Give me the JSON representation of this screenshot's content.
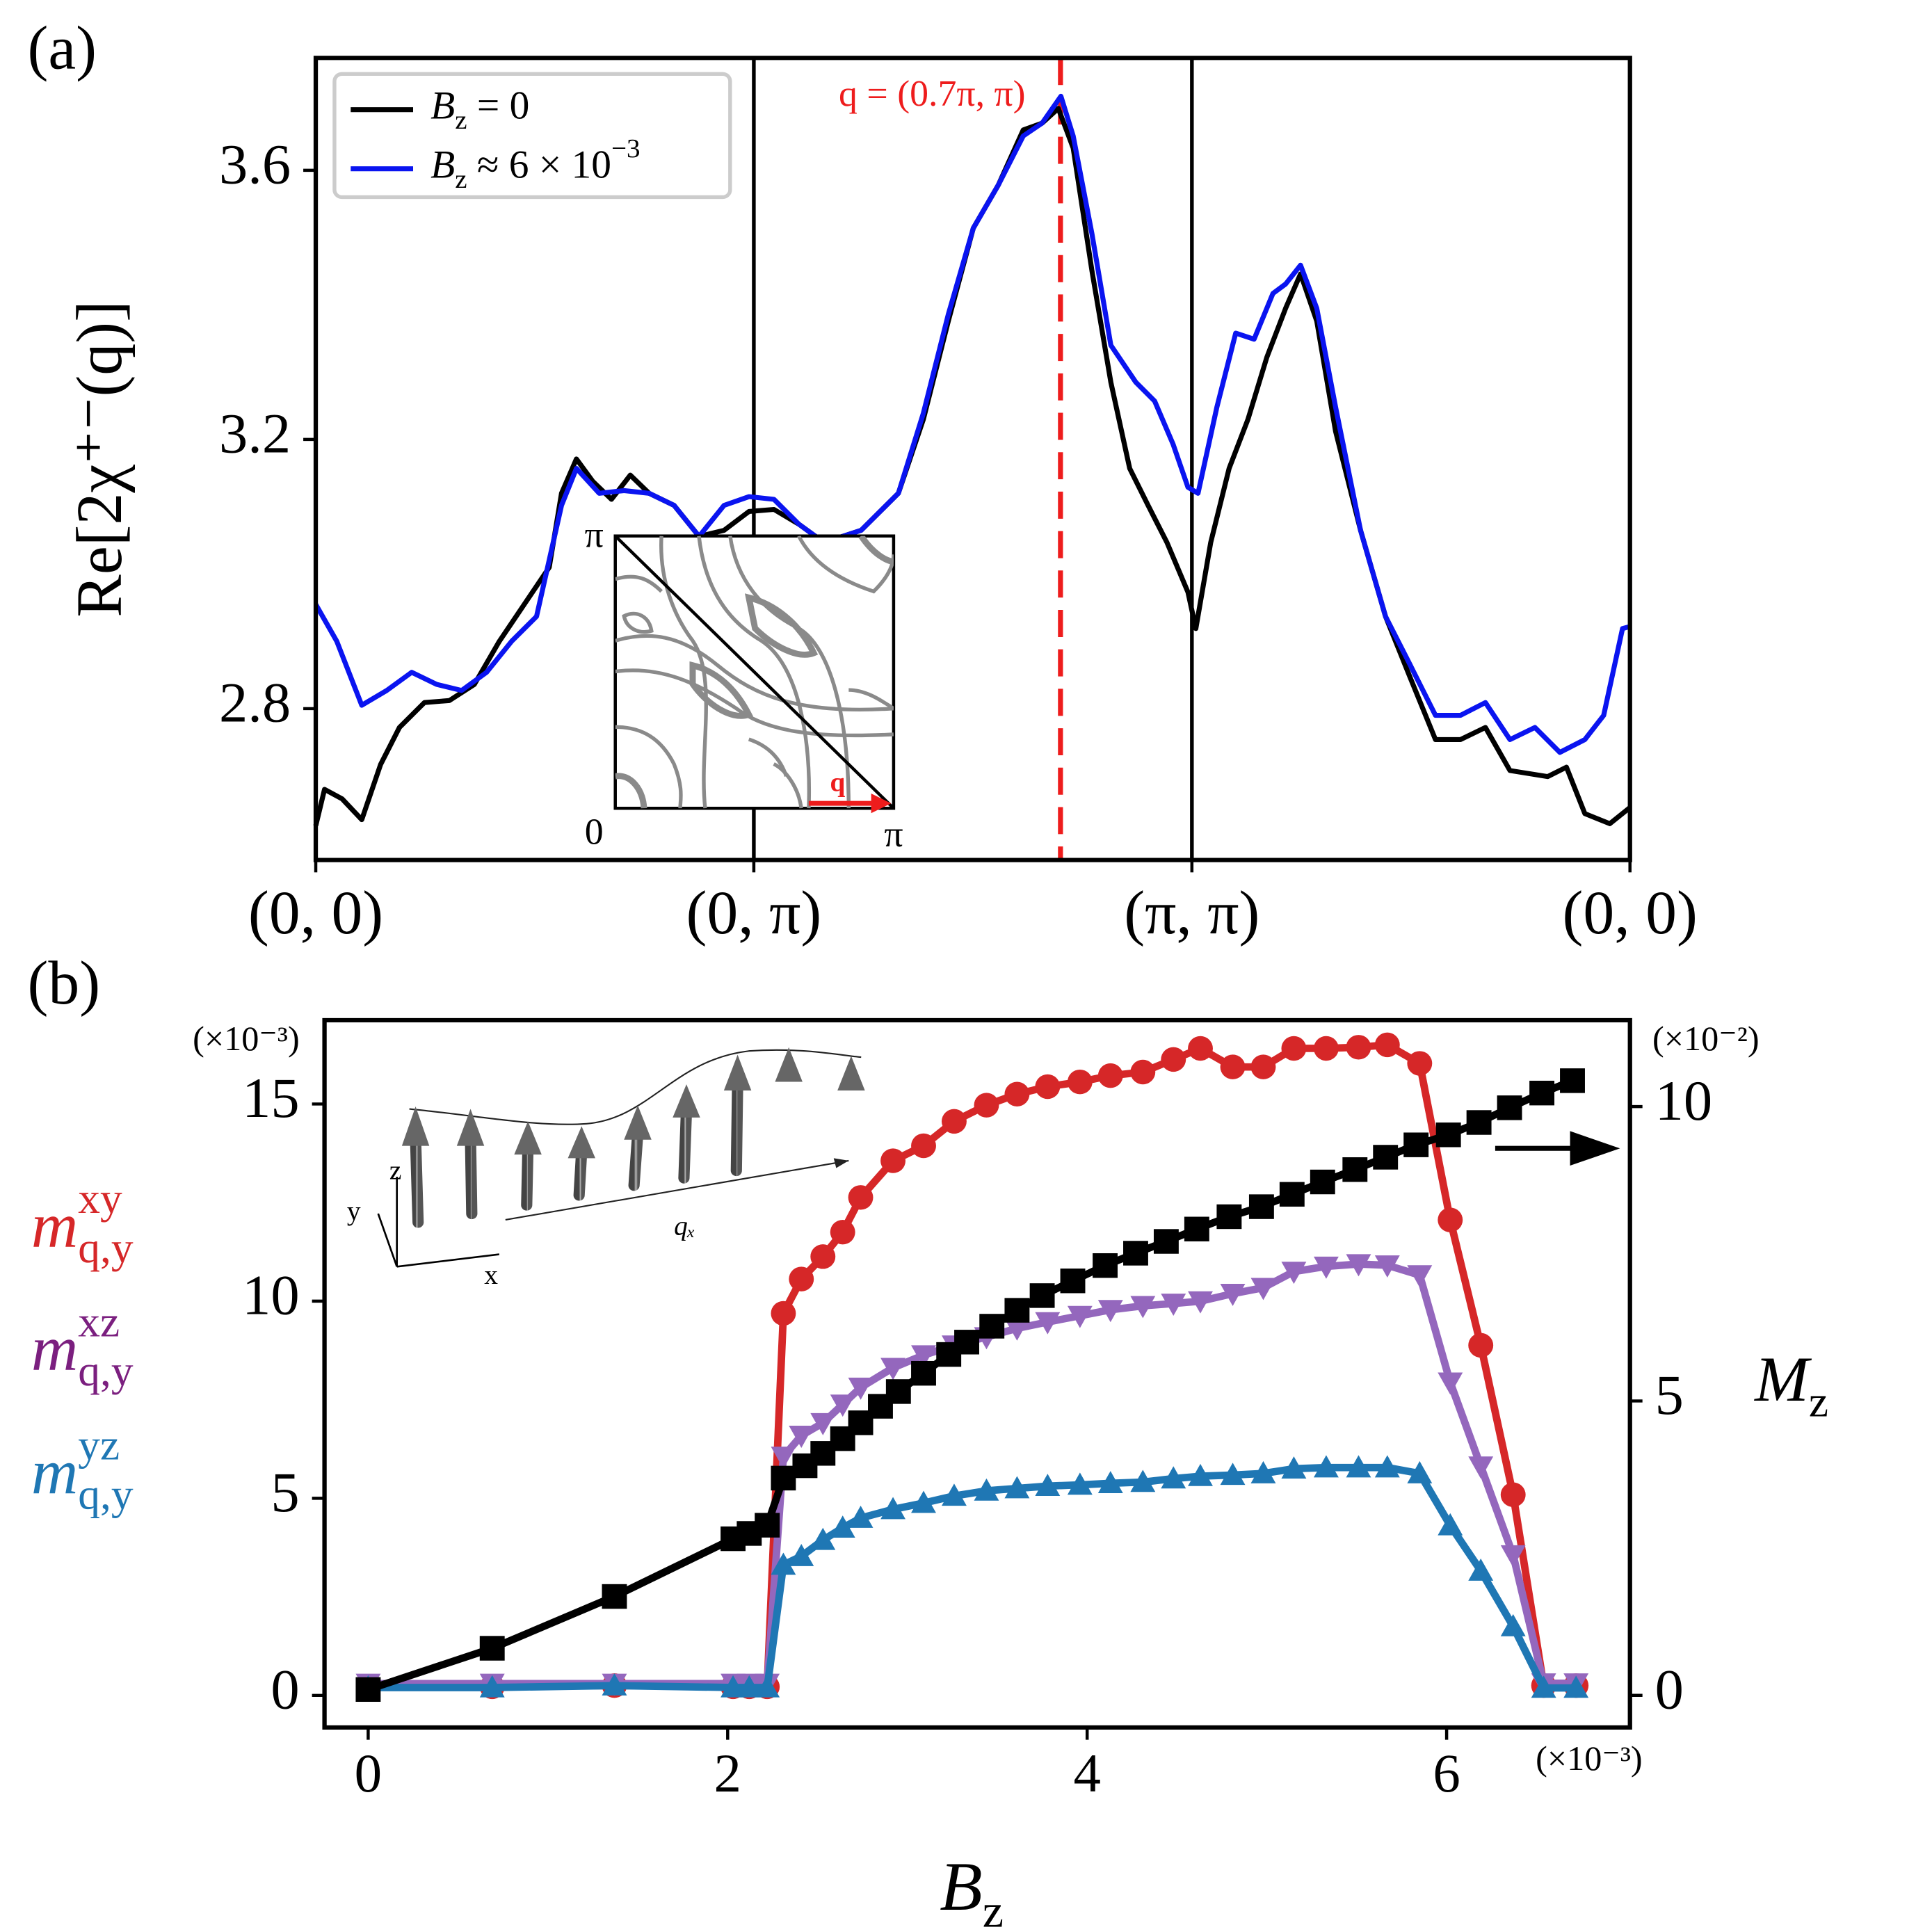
{
  "chart_data": [
    {
      "type": "line",
      "panel_label": "(a)",
      "ylabel": "Re[2χ⁺⁻(q)]",
      "xlim": [
        0,
        3
      ],
      "xticks": [
        {
          "value": 0,
          "label": "(0, 0)"
        },
        {
          "value": 1,
          "label": "(0, π)"
        },
        {
          "value": 2,
          "label": "(π, π)"
        },
        {
          "value": 3,
          "label": "(0, 0)"
        }
      ],
      "ylim": [
        2.575,
        3.767
      ],
      "yticks": [
        2.8,
        3.2,
        3.6
      ],
      "separators": true,
      "legend": "upper left",
      "annotations": [
        {
          "text": "q = (0.7π, π)",
          "x": 1.7,
          "color": "#ee1c1c",
          "style": "dashed"
        }
      ],
      "inset": {
        "labels": [
          "π",
          "0",
          "π"
        ],
        "arrow_label": "q"
      },
      "series": [
        {
          "name": [
            {
              "text": "B",
              "style": "italic"
            },
            {
              "text": "z",
              "style": "sub"
            },
            {
              "text": " = 0",
              "style": "normal"
            }
          ],
          "color": "#000000",
          "x": [
            0,
            0.02,
            0.06,
            0.105,
            0.148,
            0.191,
            0.248,
            0.305,
            0.362,
            0.419,
            0.476,
            0.533,
            0.561,
            0.595,
            0.632,
            0.675,
            0.718,
            0.761,
            0.818,
            0.875,
            0.932,
            0.989,
            1.046,
            1.103,
            1.16,
            1.245,
            1.33,
            1.387,
            1.444,
            1.501,
            1.558,
            1.615,
            1.658,
            1.695,
            1.729,
            1.772,
            1.815,
            1.858,
            1.9,
            1.943,
            1.991,
            2.009,
            2.043,
            2.085,
            2.128,
            2.171,
            2.214,
            2.248,
            2.285,
            2.328,
            2.385,
            2.442,
            2.499,
            2.556,
            2.613,
            2.67,
            2.726,
            2.812,
            2.855,
            2.897,
            2.954,
            3.0
          ],
          "values": [
            2.626,
            2.68,
            2.666,
            2.635,
            2.717,
            2.772,
            2.809,
            2.812,
            2.836,
            2.9,
            2.955,
            3.01,
            3.12,
            3.171,
            3.138,
            3.111,
            3.147,
            3.12,
            3.102,
            3.056,
            3.065,
            3.093,
            3.096,
            3.074,
            3.047,
            3.065,
            3.12,
            3.23,
            3.376,
            3.514,
            3.578,
            3.66,
            3.67,
            3.692,
            3.633,
            3.45,
            3.285,
            3.157,
            3.102,
            3.047,
            2.973,
            2.919,
            3.047,
            3.157,
            3.23,
            3.322,
            3.395,
            3.446,
            3.376,
            3.212,
            3.065,
            2.937,
            2.845,
            2.754,
            2.754,
            2.772,
            2.708,
            2.699,
            2.713,
            2.644,
            2.629,
            2.653
          ]
        },
        {
          "name": [
            {
              "text": "B",
              "style": "italic"
            },
            {
              "text": "z",
              "style": "sub"
            },
            {
              "text": " ≈ 6 × 10",
              "style": "normal"
            },
            {
              "text": "−3",
              "style": "sup"
            }
          ],
          "color": "#0a14f0",
          "x": [
            0,
            0.048,
            0.105,
            0.162,
            0.219,
            0.276,
            0.333,
            0.39,
            0.447,
            0.504,
            0.561,
            0.595,
            0.647,
            0.704,
            0.761,
            0.818,
            0.875,
            0.932,
            0.989,
            1.046,
            1.103,
            1.16,
            1.245,
            1.33,
            1.387,
            1.444,
            1.501,
            1.558,
            1.615,
            1.658,
            1.701,
            1.729,
            1.772,
            1.815,
            1.872,
            1.915,
            1.957,
            1.991,
            2.014,
            2.057,
            2.1,
            2.142,
            2.185,
            2.214,
            2.248,
            2.285,
            2.328,
            2.385,
            2.442,
            2.499,
            2.556,
            2.613,
            2.67,
            2.726,
            2.783,
            2.84,
            2.897,
            2.94,
            2.983,
            3.0
          ],
          "values": [
            2.955,
            2.9,
            2.805,
            2.827,
            2.854,
            2.836,
            2.827,
            2.854,
            2.9,
            2.937,
            3.102,
            3.157,
            3.12,
            3.124,
            3.12,
            3.102,
            3.056,
            3.102,
            3.115,
            3.111,
            3.074,
            3.047,
            3.065,
            3.12,
            3.239,
            3.386,
            3.514,
            3.578,
            3.651,
            3.67,
            3.71,
            3.651,
            3.505,
            3.34,
            3.285,
            3.257,
            3.193,
            3.129,
            3.12,
            3.248,
            3.358,
            3.349,
            3.417,
            3.431,
            3.459,
            3.395,
            3.248,
            3.065,
            2.937,
            2.864,
            2.79,
            2.79,
            2.809,
            2.754,
            2.772,
            2.735,
            2.754,
            2.79,
            2.919,
            2.922
          ]
        }
      ]
    },
    {
      "type": "line",
      "panel_label": "(b)",
      "xlabel": [
        {
          "text": "B",
          "style": "italic"
        },
        {
          "text": "z",
          "style": "sub"
        }
      ],
      "y2label": [
        {
          "text": "M",
          "style": "italic"
        },
        {
          "text": "z",
          "style": "sub"
        }
      ],
      "x_multiplier": "(×10⁻³)",
      "y_multiplier": "(×10⁻³)",
      "y2_multiplier": "(×10⁻²)",
      "xlim": [
        -0.243,
        7.02
      ],
      "xticks": [
        0,
        2,
        4,
        6
      ],
      "ylim": [
        -0.8125,
        17.125
      ],
      "yticks": [
        0,
        5,
        10,
        15
      ],
      "y2lim": [
        -0.545,
        11.467
      ],
      "y2ticks": [
        0,
        5,
        10
      ],
      "legend": "left",
      "inset_labels": [
        "z",
        "y",
        "x",
        "qₓ"
      ],
      "series": [
        {
          "name": [
            {
              "text": "m",
              "style": "italic"
            },
            {
              "text": "xy",
              "style": "sup"
            },
            {
              "text": "q,y",
              "style": "sub"
            }
          ],
          "color": "#d62728",
          "marker": "o",
          "x": [
            0,
            0.69,
            1.37,
            2.03,
            2.12,
            2.22,
            2.31,
            2.41,
            2.53,
            2.64,
            2.74,
            2.92,
            3.09,
            3.26,
            3.44,
            3.61,
            3.78,
            3.96,
            4.13,
            4.31,
            4.48,
            4.63,
            4.81,
            4.98,
            5.15,
            5.33,
            5.51,
            5.67,
            5.85,
            6.02,
            6.19,
            6.37,
            6.54,
            6.72
          ],
          "values": [
            0.22,
            0.22,
            0.25,
            0.22,
            0.22,
            0.22,
            9.69,
            10.56,
            11.13,
            11.75,
            12.63,
            13.56,
            13.94,
            14.56,
            14.97,
            15.25,
            15.44,
            15.56,
            15.72,
            15.81,
            16.13,
            16.41,
            15.94,
            15.94,
            16.41,
            16.41,
            16.44,
            16.5,
            16.03,
            12.06,
            8.88,
            5.09,
            0.25,
            0.25
          ]
        },
        {
          "name": [
            {
              "text": "m",
              "style": "italic"
            },
            {
              "text": "xz",
              "style": "sup"
            },
            {
              "text": "q,y",
              "style": "sub"
            }
          ],
          "color": "#9467bd",
          "marker": "v",
          "label_color": "#7b1f7f",
          "x": [
            0,
            0.69,
            1.37,
            2.03,
            2.12,
            2.22,
            2.31,
            2.41,
            2.53,
            2.64,
            2.74,
            2.92,
            3.09,
            3.26,
            3.44,
            3.61,
            3.78,
            3.96,
            4.13,
            4.31,
            4.48,
            4.63,
            4.81,
            4.98,
            5.15,
            5.33,
            5.51,
            5.67,
            5.85,
            6.02,
            6.19,
            6.37,
            6.54,
            6.72
          ],
          "values": [
            0.3,
            0.3,
            0.3,
            0.3,
            0.3,
            0.3,
            6.06,
            6.59,
            6.91,
            7.38,
            7.81,
            8.31,
            8.63,
            8.88,
            9.09,
            9.31,
            9.47,
            9.63,
            9.78,
            9.88,
            9.94,
            10.0,
            10.19,
            10.34,
            10.75,
            10.88,
            10.94,
            10.91,
            10.66,
            7.94,
            5.81,
            3.56,
            0.31,
            0.31
          ]
        },
        {
          "name": [
            {
              "text": "m",
              "style": "italic"
            },
            {
              "text": "yz",
              "style": "sup"
            },
            {
              "text": "q,y",
              "style": "sub"
            }
          ],
          "color": "#1f77b4",
          "marker": "^",
          "x": [
            0,
            0.69,
            1.37,
            2.03,
            2.12,
            2.22,
            2.31,
            2.41,
            2.53,
            2.64,
            2.74,
            2.92,
            3.09,
            3.26,
            3.44,
            3.61,
            3.78,
            3.96,
            4.13,
            4.31,
            4.48,
            4.63,
            4.81,
            4.98,
            5.15,
            5.33,
            5.51,
            5.67,
            5.85,
            6.02,
            6.19,
            6.37,
            6.54,
            6.72
          ],
          "values": [
            0.2,
            0.2,
            0.25,
            0.2,
            0.2,
            0.2,
            3.31,
            3.53,
            3.94,
            4.25,
            4.5,
            4.72,
            4.88,
            5.06,
            5.19,
            5.25,
            5.31,
            5.34,
            5.38,
            5.41,
            5.5,
            5.56,
            5.59,
            5.63,
            5.75,
            5.78,
            5.78,
            5.78,
            5.63,
            4.31,
            3.16,
            1.75,
            0.19,
            0.19
          ]
        },
        {
          "color": "#000000",
          "marker": "s",
          "axis": "y2",
          "x": [
            0,
            0.69,
            1.37,
            2.03,
            2.12,
            2.22,
            2.31,
            2.43,
            2.53,
            2.64,
            2.74,
            2.85,
            2.95,
            3.09,
            3.23,
            3.33,
            3.47,
            3.61,
            3.75,
            3.92,
            4.1,
            4.27,
            4.44,
            4.61,
            4.79,
            4.97,
            5.14,
            5.31,
            5.49,
            5.66,
            5.83,
            6.01,
            6.18,
            6.35,
            6.53,
            6.7
          ],
          "values": [
            0.1,
            0.8,
            1.68,
            2.66,
            2.75,
            2.89,
            3.69,
            3.9,
            4.11,
            4.36,
            4.63,
            4.91,
            5.16,
            5.47,
            5.79,
            6.0,
            6.27,
            6.54,
            6.79,
            7.04,
            7.3,
            7.51,
            7.71,
            7.92,
            8.13,
            8.3,
            8.51,
            8.72,
            8.93,
            9.14,
            9.35,
            9.52,
            9.73,
            9.98,
            10.23,
            10.44
          ]
        }
      ]
    }
  ]
}
